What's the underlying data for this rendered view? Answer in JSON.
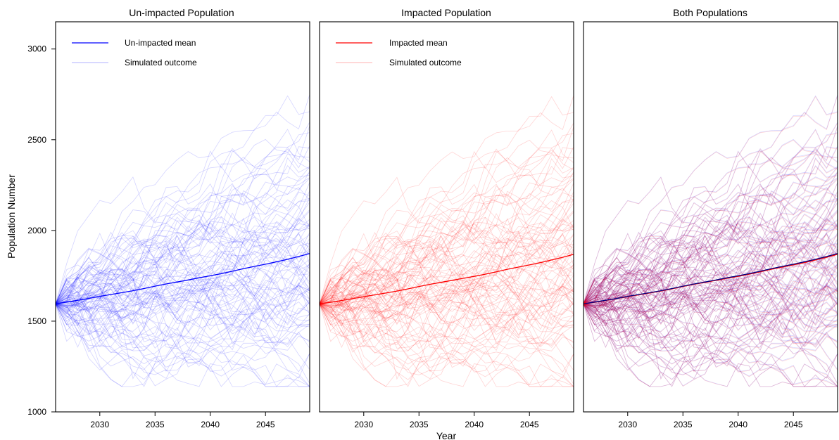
{
  "colors": {
    "unimpacted": "#0000ff",
    "impacted": "#ff0000",
    "both_mean_overlay": "#000080"
  },
  "chart_data": {
    "type": "line",
    "xlabel": "Year",
    "ylabel": "Population Number",
    "xlim": [
      2026,
      2049
    ],
    "ylim": [
      1000,
      3150
    ],
    "xticks": [
      2030,
      2035,
      2040,
      2045
    ],
    "yticks": [
      1000,
      1500,
      2000,
      2500,
      3000
    ],
    "grid": false,
    "legend_position": "top-left",
    "x": [
      2026,
      2027,
      2028,
      2029,
      2030,
      2031,
      2032,
      2033,
      2034,
      2035,
      2036,
      2037,
      2038,
      2039,
      2040,
      2041,
      2042,
      2043,
      2044,
      2045,
      2046,
      2047,
      2048,
      2049
    ],
    "mean_unimpacted": [
      1595,
      1605,
      1615,
      1625,
      1637,
      1647,
      1657,
      1668,
      1680,
      1693,
      1705,
      1716,
      1727,
      1739,
      1750,
      1762,
      1775,
      1789,
      1802,
      1814,
      1827,
      1841,
      1856,
      1873
    ],
    "mean_impacted": [
      1595,
      1604,
      1614,
      1624,
      1635,
      1645,
      1655,
      1666,
      1678,
      1691,
      1703,
      1714,
      1725,
      1736,
      1747,
      1759,
      1772,
      1786,
      1798,
      1810,
      1823,
      1837,
      1852,
      1868
    ],
    "simulated_lines": 100,
    "panels": [
      {
        "title": "Un-impacted Population",
        "legend": [
          {
            "label": "Un-impacted mean"
          },
          {
            "label": "Simulated outcome"
          }
        ]
      },
      {
        "title": "Impacted Population",
        "legend": [
          {
            "label": "Impacted mean"
          },
          {
            "label": "Simulated outcome"
          }
        ]
      },
      {
        "title": "Both Populations",
        "legend": []
      }
    ]
  }
}
